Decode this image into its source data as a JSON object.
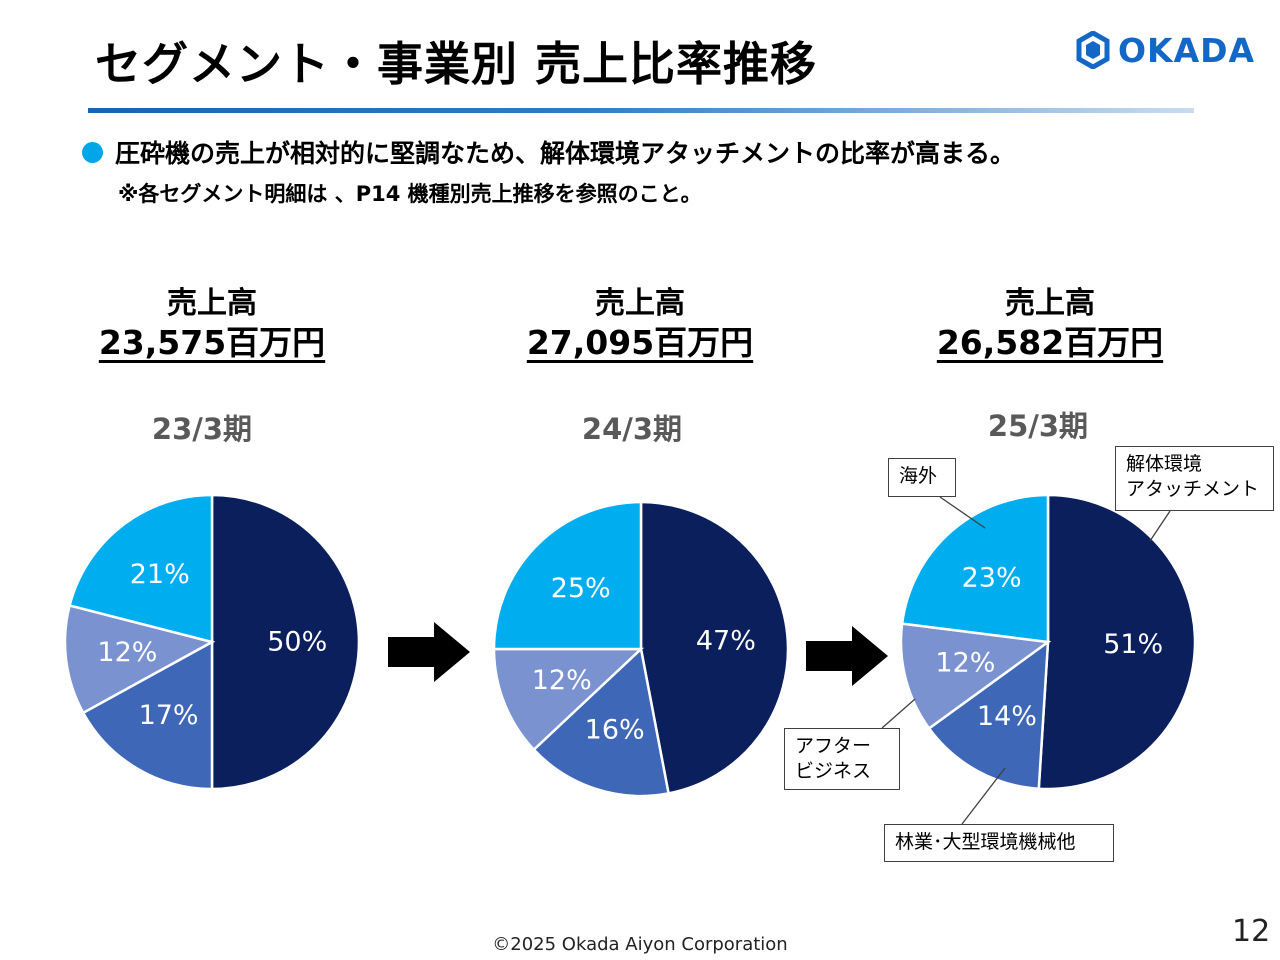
{
  "header": {
    "title": "セグメント・事業別 売上比率推移",
    "logo_text": "OKADA"
  },
  "bullets": {
    "main": "圧砕機の売上が相対的に堅調なため、解体環境アタッチメントの比率が高まる。",
    "note": "※各セグメント明細は 、P14 機種別売上推移を参照のこと。"
  },
  "colors": {
    "解体環境アタッチメント": "#0a1f5c",
    "林業・大型環境機械他": "#3f67b8",
    "アフタービジネス": "#7b92d0",
    "海外": "#00adef",
    "arrow": "#000000",
    "accent": "#00a6e8"
  },
  "chart_data": [
    {
      "type": "pie",
      "title": "23/3期",
      "sales_label": "売上高",
      "sales_amount": "23,575百万円",
      "categories": [
        "解体環境アタッチメント",
        "林業・大型環境機械他",
        "アフタービジネス",
        "海外"
      ],
      "values": [
        50,
        17,
        12,
        21
      ],
      "labels": [
        "50%",
        "17%",
        "12%",
        "21%"
      ]
    },
    {
      "type": "pie",
      "title": "24/3期",
      "sales_label": "売上高",
      "sales_amount": "27,095百万円",
      "categories": [
        "解体環境アタッチメント",
        "林業・大型環境機械他",
        "アフタービジネス",
        "海外"
      ],
      "values": [
        47,
        16,
        12,
        25
      ],
      "labels": [
        "47%",
        "16%",
        "12%",
        "25%"
      ]
    },
    {
      "type": "pie",
      "title": "25/3期",
      "sales_label": "売上高",
      "sales_amount": "26,582百万円",
      "categories": [
        "解体環境アタッチメント",
        "林業・大型環境機械他",
        "アフタービジネス",
        "海外"
      ],
      "values": [
        51,
        14,
        12,
        23
      ],
      "labels": [
        "51%",
        "14%",
        "12%",
        "23%"
      ]
    }
  ],
  "callouts": {
    "overseas": "海外",
    "demolition": "解体環境\nアタッチメント",
    "after_business": "アフター\nビジネス",
    "forestry": "林業･大型環境機械他"
  },
  "footer": {
    "copyright": "©2025 Okada Aiyon Corporation",
    "page_number": "12"
  }
}
